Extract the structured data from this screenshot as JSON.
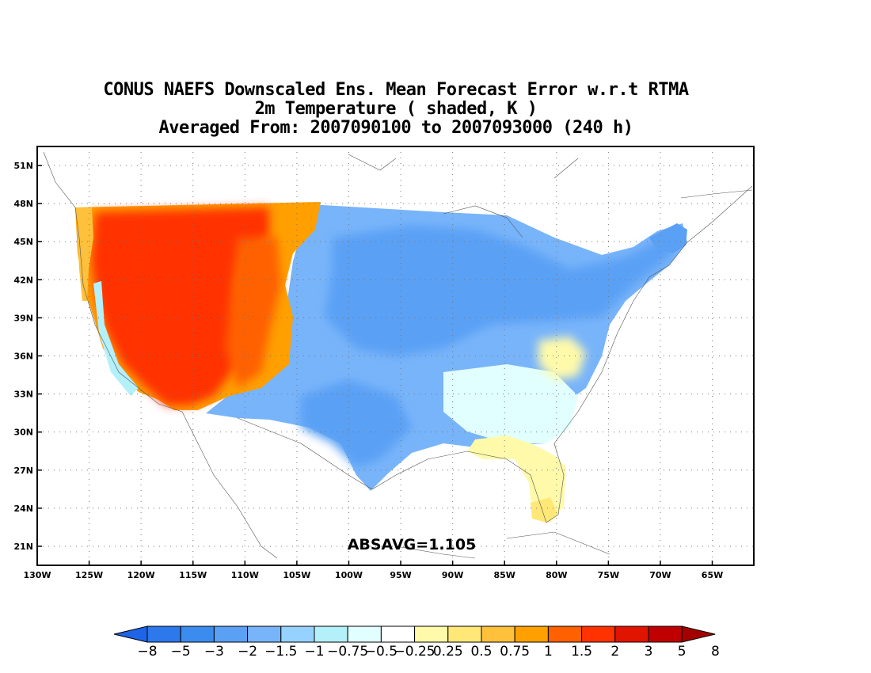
{
  "title": {
    "line1": "CONUS NAEFS Downscaled Ens. Mean Forecast Error w.r.t RTMA",
    "line2": "2m Temperature ( shaded, K )",
    "line3": "Averaged From: 2007090100 to 2007093000 (240 h)"
  },
  "stat": {
    "text": "ABSAVG=1.105"
  },
  "map": {
    "lon_range": [
      -130,
      -61
    ],
    "lat_range": [
      19.5,
      52.5
    ],
    "lon_ticks": [
      {
        "v": -130,
        "label": "130W"
      },
      {
        "v": -125,
        "label": "125W"
      },
      {
        "v": -120,
        "label": "120W"
      },
      {
        "v": -115,
        "label": "115W"
      },
      {
        "v": -110,
        "label": "110W"
      },
      {
        "v": -105,
        "label": "105W"
      },
      {
        "v": -100,
        "label": "100W"
      },
      {
        "v": -95,
        "label": "95W"
      },
      {
        "v": -90,
        "label": "90W"
      },
      {
        "v": -85,
        "label": "85W"
      },
      {
        "v": -80,
        "label": "80W"
      },
      {
        "v": -75,
        "label": "75W"
      },
      {
        "v": -70,
        "label": "70W"
      },
      {
        "v": -65,
        "label": "65W"
      }
    ],
    "lat_ticks": [
      {
        "v": 21,
        "label": "21N"
      },
      {
        "v": 24,
        "label": "24N"
      },
      {
        "v": 27,
        "label": "27N"
      },
      {
        "v": 30,
        "label": "30N"
      },
      {
        "v": 33,
        "label": "33N"
      },
      {
        "v": 36,
        "label": "36N"
      },
      {
        "v": 39,
        "label": "39N"
      },
      {
        "v": 42,
        "label": "42N"
      },
      {
        "v": 45,
        "label": "45N"
      },
      {
        "v": 48,
        "label": "48N"
      },
      {
        "v": 51,
        "label": "51N"
      }
    ],
    "grid": true
  },
  "colorbar": {
    "labels": [
      "-8",
      "-5",
      "-3",
      "-2",
      "-1.5",
      "-1",
      "-0.75",
      "-0.5",
      "-0.25",
      "0.25",
      "0.5",
      "0.75",
      "1",
      "1.5",
      "2",
      "3",
      "5",
      "8"
    ],
    "colors": [
      "#1e64e6",
      "#2d78eb",
      "#3c8cf0",
      "#5aa0f5",
      "#78b4fa",
      "#96d2ff",
      "#b4f0fa",
      "#e1ffff",
      "#ffffff",
      "#fffaaa",
      "#ffe878",
      "#ffc03c",
      "#ffa000",
      "#ff6000",
      "#ff3200",
      "#e11400",
      "#c00000",
      "#a50000"
    ]
  },
  "regions": [
    {
      "name": "west-positive",
      "color": "#ff3200"
    },
    {
      "name": "east-negative",
      "color": "#5aa0f5"
    },
    {
      "name": "southeast-neutral",
      "color": "#fffaaa"
    }
  ]
}
